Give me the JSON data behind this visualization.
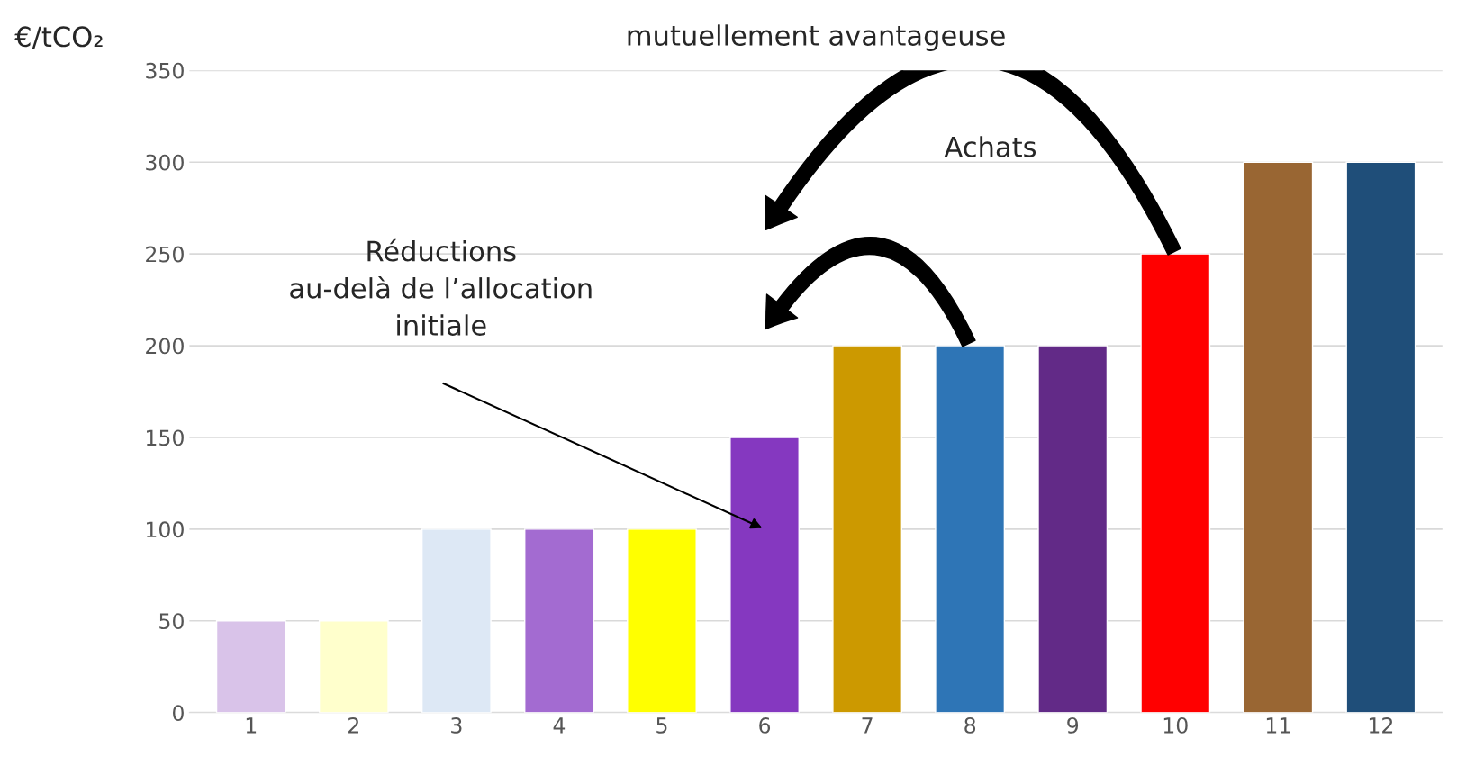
{
  "chart_data": {
    "type": "bar",
    "title": "mutuellement avantageuse",
    "ylabel": "€/tCO₂",
    "categories": [
      "1",
      "2",
      "3",
      "4",
      "5",
      "6",
      "7",
      "8",
      "9",
      "10",
      "11",
      "12"
    ],
    "values": [
      50,
      50,
      100,
      100,
      100,
      150,
      200,
      200,
      200,
      250,
      300,
      300
    ],
    "colors": [
      "#d9c3e9",
      "#ffffcc",
      "#dde8f5",
      "#a36bd1",
      "#ffff00",
      "#8538c0",
      "#cc9900",
      "#2e75b6",
      "#622a87",
      "#ff0000",
      "#996633",
      "#1f4e79"
    ],
    "ylim": [
      0,
      350
    ],
    "yticks": [
      0,
      50,
      100,
      150,
      200,
      250,
      300,
      350
    ],
    "grid": "y",
    "annotations": [
      "Achats",
      "Réductions\nau-delà de l’allocation\ninitiale"
    ]
  }
}
